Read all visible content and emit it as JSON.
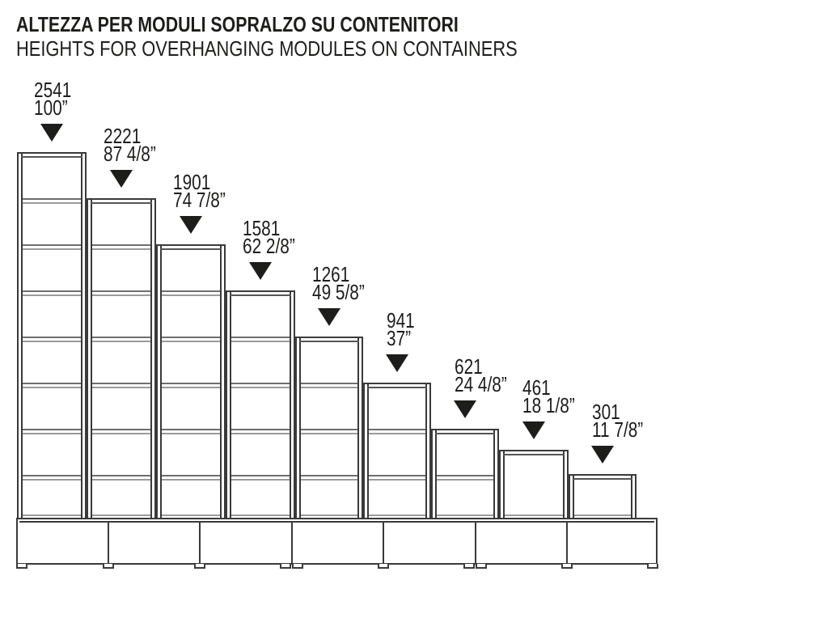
{
  "title": {
    "line1_it": "ALTEZZA PER MODULI SOPRALZO SU CONTENITORI",
    "line2_en": "HEIGHTS FOR OVERHANGING MODULES ON CONTAINERS"
  },
  "modules": [
    {
      "mm": "2541",
      "inches": "100”",
      "compartments": 8
    },
    {
      "mm": "2221",
      "inches": "87 4/8”",
      "compartments": 7
    },
    {
      "mm": "1901",
      "inches": "74 7/8”",
      "compartments": 6
    },
    {
      "mm": "1581",
      "inches": "62 2/8”",
      "compartments": 5
    },
    {
      "mm": "1261",
      "inches": "49 5/8”",
      "compartments": 4
    },
    {
      "mm": "941",
      "inches": "37”",
      "compartments": 3
    },
    {
      "mm": "621",
      "inches": "24 4/8”",
      "compartments": 2
    },
    {
      "mm": "461",
      "inches": "18 1/8”",
      "compartments": 1
    },
    {
      "mm": "301",
      "inches": "11 7/8”",
      "compartments": 1
    }
  ],
  "pointer_icon": "down-triangle",
  "base": {
    "sections": 7,
    "feet": 10
  },
  "colors": {
    "ink": "#1d1d1b",
    "line": "#3a3a3a",
    "panel": "#555555",
    "shelf_dark": "#6e6e6e",
    "shelf_light": "#9b9b9b"
  }
}
